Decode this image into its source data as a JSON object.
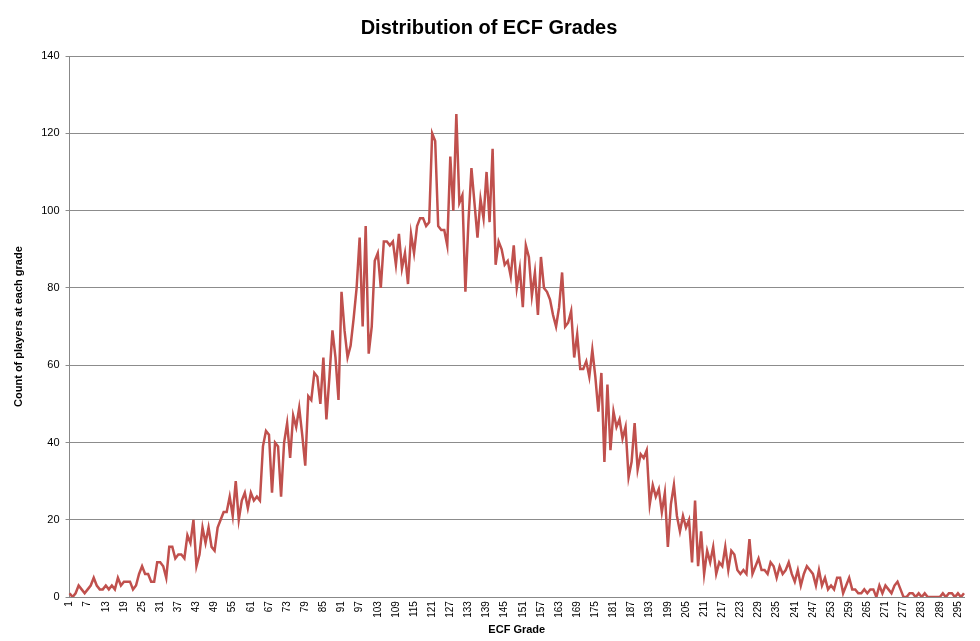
{
  "chart_data": {
    "type": "line",
    "title": "Distribution of ECF Grades",
    "xlabel": "ECF Grade",
    "ylabel": "Count of players at each grade",
    "categories": [
      1,
      null,
      null,
      null,
      null,
      null,
      7,
      null,
      null,
      null,
      null,
      null,
      13,
      null,
      null,
      null,
      null,
      null,
      19,
      null,
      null,
      null,
      null,
      null,
      25,
      null,
      null,
      null,
      null,
      null,
      31,
      null,
      null,
      null,
      null,
      null,
      37,
      null,
      null,
      null,
      null,
      null,
      43,
      null,
      null,
      null,
      null,
      null,
      49,
      null,
      null,
      null,
      null,
      null,
      55,
      null,
      null,
      null,
      null,
      null,
      61,
      null,
      null,
      null,
      null,
      null,
      67,
      null,
      null,
      null,
      null,
      null,
      73,
      null,
      null,
      null,
      null,
      null,
      79,
      null,
      null,
      null,
      null,
      null,
      85,
      null,
      null,
      null,
      null,
      null,
      91,
      null,
      null,
      null,
      null,
      null,
      97,
      null,
      null,
      null,
      null,
      null,
      103,
      null,
      null,
      null,
      null,
      null,
      109,
      null,
      null,
      null,
      null,
      null,
      115,
      null,
      null,
      null,
      null,
      null,
      121,
      null,
      null,
      null,
      null,
      null,
      127,
      null,
      null,
      null,
      null,
      null,
      133,
      null,
      null,
      null,
      null,
      null,
      139,
      null,
      null,
      null,
      null,
      null,
      145,
      null,
      null,
      null,
      null,
      null,
      151,
      null,
      null,
      null,
      null,
      null,
      157,
      null,
      null,
      null,
      null,
      null,
      163,
      null,
      null,
      null,
      null,
      null,
      169,
      null,
      null,
      null,
      null,
      null,
      175,
      null,
      null,
      null,
      null,
      null,
      181,
      null,
      null,
      null,
      null,
      null,
      187,
      null,
      null,
      null,
      null,
      null,
      193,
      null,
      null,
      null,
      null,
      null,
      199,
      null,
      null,
      null,
      null,
      null,
      205,
      null,
      null,
      null,
      null,
      null,
      211,
      null,
      null,
      null,
      null,
      null,
      217,
      null,
      null,
      null,
      null,
      null,
      223,
      null,
      null,
      null,
      null,
      null,
      229,
      null,
      null,
      null,
      null,
      null,
      235,
      null,
      null,
      null,
      null,
      null,
      241,
      null,
      null,
      null,
      null,
      null,
      247,
      null,
      null,
      null,
      null,
      null,
      253,
      null,
      null,
      null,
      null,
      null,
      259,
      null,
      null,
      null,
      null,
      null,
      265,
      null,
      null,
      null,
      null,
      null,
      271,
      null,
      null,
      null,
      null,
      null,
      277,
      null,
      null,
      null,
      null,
      null,
      283,
      null,
      null,
      null,
      null,
      null,
      289,
      null,
      null,
      null,
      null,
      null,
      295,
      null,
      null
    ],
    "values": [
      1,
      0,
      1,
      3,
      2,
      1,
      2,
      3,
      5,
      3,
      2,
      2,
      3,
      2,
      3,
      2,
      5,
      3,
      4,
      4,
      4,
      2,
      3,
      6,
      8,
      6,
      6,
      4,
      4,
      9,
      9,
      8,
      5,
      13,
      13,
      10,
      11,
      11,
      10,
      16,
      14,
      20,
      8,
      11,
      18,
      14,
      18,
      13,
      12,
      18,
      20,
      22,
      22,
      26,
      21,
      30,
      20,
      25,
      27,
      23,
      27,
      25,
      26,
      25,
      39,
      43,
      42,
      27,
      40,
      39,
      26,
      40,
      45,
      36,
      47,
      44,
      49,
      42,
      34,
      52,
      51,
      58,
      57,
      50,
      62,
      46,
      57,
      69,
      62,
      51,
      79,
      69,
      62,
      65,
      72,
      80,
      93,
      70,
      96,
      63,
      70,
      87,
      89,
      80,
      92,
      92,
      91,
      92,
      86,
      94,
      85,
      89,
      81,
      94,
      89,
      96,
      98,
      98,
      96,
      97,
      120,
      118,
      96,
      95,
      95,
      91,
      114,
      100,
      125,
      102,
      104,
      79,
      97,
      111,
      102,
      93,
      103,
      98,
      110,
      97,
      116,
      86,
      92,
      90,
      86,
      87,
      83,
      91,
      80,
      85,
      75,
      91,
      88,
      78,
      84,
      73,
      88,
      80,
      79,
      77,
      73,
      70,
      75,
      84,
      70,
      71,
      74,
      62,
      68,
      59,
      59,
      61,
      57,
      64,
      57,
      48,
      58,
      35,
      55,
      38,
      48,
      44,
      46,
      41,
      44,
      31,
      35,
      45,
      33,
      37,
      36,
      38,
      24,
      29,
      26,
      28,
      22,
      27,
      13,
      24,
      29,
      21,
      17,
      21,
      18,
      20,
      9,
      25,
      8,
      17,
      6,
      12,
      9,
      13,
      6,
      9,
      8,
      13,
      7,
      12,
      11,
      7,
      6,
      7,
      6,
      15,
      6,
      8,
      10,
      7,
      7,
      6,
      9,
      8,
      5,
      8,
      6,
      7,
      9,
      6,
      4,
      7,
      3,
      6,
      8,
      7,
      6,
      3,
      7,
      3,
      5,
      2,
      3,
      2,
      5,
      5,
      1,
      3,
      5,
      2,
      2,
      1,
      1,
      2,
      1,
      2,
      2,
      0,
      3,
      1,
      3,
      2,
      1,
      3,
      4,
      2,
      0,
      0,
      1,
      1,
      0,
      1,
      0,
      1,
      0,
      0,
      0,
      0,
      0,
      1,
      0,
      1,
      1,
      0,
      1,
      0,
      1
    ],
    "color": "#c0504d",
    "ylim": [
      0,
      140
    ],
    "yticks": [
      0,
      20,
      40,
      60,
      80,
      100,
      120,
      140
    ],
    "grid": true
  }
}
